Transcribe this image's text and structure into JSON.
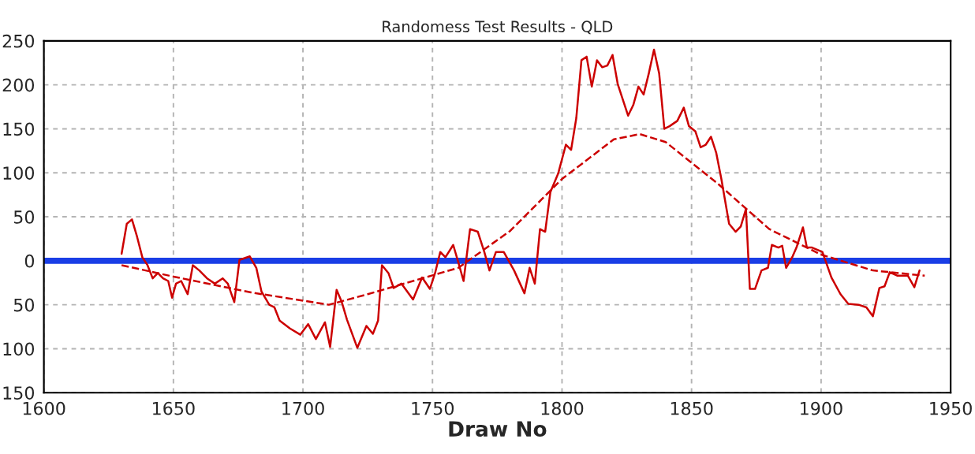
{
  "chart_data": {
    "type": "line",
    "title": "Randomess Test Results - QLD",
    "xlabel": "Draw No",
    "xlim": [
      1600,
      1950
    ],
    "xticks": [
      1600,
      1650,
      1700,
      1750,
      1800,
      1850,
      1900,
      1950
    ],
    "ylim": [
      -150,
      250
    ],
    "yticks": [
      {
        "value": -150,
        "label": "150"
      },
      {
        "value": -100,
        "label": "100"
      },
      {
        "value": -50,
        "label": "50"
      },
      0,
      50,
      100,
      150,
      200,
      250
    ],
    "grid": true,
    "legend": false,
    "marker": "none",
    "ref_lines": [
      {
        "axis": "y",
        "value": 0,
        "color": "#1a3ee6",
        "line_style": "solid"
      }
    ],
    "series": [
      {
        "color": "#cc0000",
        "line_style": "solid",
        "x": [
          1630,
          1632,
          1634,
          1636,
          1638,
          1640,
          1642,
          1644,
          1646,
          1648,
          1649.5,
          1651,
          1653,
          1655.5,
          1657.5,
          1660,
          1663,
          1666,
          1669,
          1671,
          1673.5,
          1675.5,
          1679.5,
          1682,
          1684,
          1687,
          1689,
          1691,
          1695,
          1699,
          1702,
          1705,
          1708.5,
          1710.5,
          1713,
          1715,
          1717,
          1721,
          1724.5,
          1727,
          1729,
          1730.5,
          1733,
          1735,
          1738,
          1742.5,
          1746,
          1749,
          1751,
          1753,
          1755,
          1758,
          1760,
          1762,
          1764.5,
          1767.5,
          1770,
          1772,
          1774.5,
          1777.5,
          1781.5,
          1785.5,
          1787.5,
          1789.5,
          1791.5,
          1793.5,
          1795.5,
          1798.5,
          1801.5,
          1803.5,
          1805.5,
          1807.5,
          1809.5,
          1811.5,
          1813.5,
          1815.5,
          1817.5,
          1819.5,
          1821.5,
          1823.5,
          1825.5,
          1827.5,
          1829.5,
          1831.5,
          1833.5,
          1835.5,
          1837.5,
          1839.5,
          1841.5,
          1844.5,
          1847,
          1849,
          1851.5,
          1853.5,
          1855.5,
          1857.5,
          1859.5,
          1861.5,
          1864.5,
          1867,
          1869,
          1871,
          1872.5,
          1874.5,
          1877,
          1879.5,
          1881,
          1883.5,
          1885,
          1886.5,
          1889,
          1890.5,
          1893,
          1894.5,
          1896.5,
          1900.5,
          1904,
          1907.5,
          1910.5,
          1914.5,
          1917.5,
          1920,
          1922.5,
          1924.5,
          1926.5,
          1929.5,
          1933.5,
          1936,
          1938
        ],
        "values": [
          8,
          42,
          47,
          27,
          4,
          -5,
          -20,
          -14,
          -20,
          -23,
          -42,
          -26,
          -23,
          -38,
          -5,
          -11,
          -20,
          -26,
          -20,
          -26,
          -47,
          1,
          5,
          -8,
          -35,
          -50,
          -53,
          -68,
          -77,
          -84,
          -72,
          -89,
          -70,
          -98,
          -33,
          -47,
          -67,
          -99,
          -74,
          -83,
          -68,
          -5,
          -14,
          -31,
          -26,
          -44,
          -19,
          -32,
          -14,
          10,
          4,
          18,
          -2,
          -23,
          36,
          33,
          10,
          -11,
          10,
          10,
          -11,
          -37,
          -8,
          -26,
          36,
          33,
          78,
          99,
          132,
          126,
          162,
          228,
          232,
          198,
          228,
          220,
          222,
          234,
          201,
          183,
          165,
          177,
          198,
          189,
          213,
          240,
          213,
          150,
          153,
          159,
          174,
          153,
          147,
          129,
          132,
          141,
          123,
          93,
          42,
          33,
          39,
          59,
          -32,
          -32,
          -11,
          -8,
          18,
          15,
          17,
          -8,
          5,
          15,
          38,
          15,
          15,
          10,
          -19,
          -38,
          -49,
          -50,
          -53,
          -63,
          -31,
          -29,
          -13,
          -17,
          -17,
          -30,
          -11
        ]
      },
      {
        "color": "#cc0000",
        "line_style": "dashed",
        "x": [
          1630,
          1650,
          1680,
          1710,
          1725,
          1760,
          1780,
          1800,
          1820,
          1830,
          1840,
          1860,
          1880,
          1900,
          1920,
          1940
        ],
        "values": [
          -5,
          -18,
          -36,
          -50,
          -38,
          -8,
          34,
          93,
          138,
          144,
          135,
          88,
          36,
          7,
          -11,
          -17
        ]
      }
    ]
  }
}
